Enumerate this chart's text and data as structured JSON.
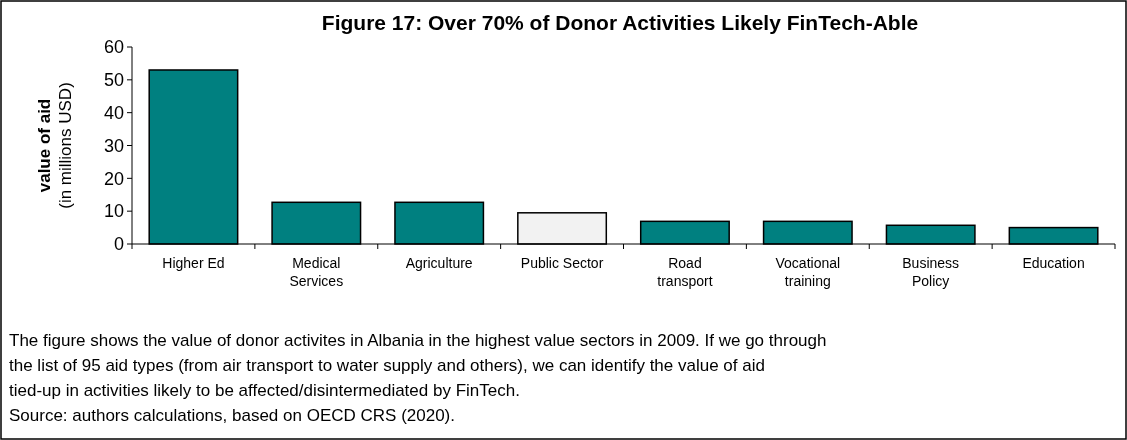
{
  "chart_data": {
    "type": "bar",
    "title": "Figure 17: Over 70% of Donor Activities Likely FinTech-Able",
    "ylabel": "value of aid\n(in millions USD)",
    "categories": [
      "Higher Ed",
      "Medical\nServices",
      "Agriculture",
      "Public Sector",
      "Road\ntransport",
      "Vocational\ntraining",
      "Business\nPolicy",
      "Education"
    ],
    "values": [
      53,
      12.7,
      12.7,
      9.5,
      6.9,
      6.9,
      5.7,
      5.0
    ],
    "colors": [
      "#008080",
      "#008080",
      "#008080",
      "#f2f2f2",
      "#008080",
      "#008080",
      "#008080",
      "#008080"
    ],
    "ylim": [
      0,
      60
    ],
    "yticks": [
      0,
      10,
      20,
      30,
      40,
      50,
      60
    ],
    "grid": false,
    "annotations": [
      "The figure shows the value of donor activites in Albania in the highest value sectors in 2009. If we go through",
      "the list of 95 aid types (from air transport to water supply and others), we can identify the value of aid",
      "tied-up in activities likely to be affected/disintermediated by FinTech.",
      "Source: authors calculations, based on OECD CRS (2020)."
    ]
  }
}
